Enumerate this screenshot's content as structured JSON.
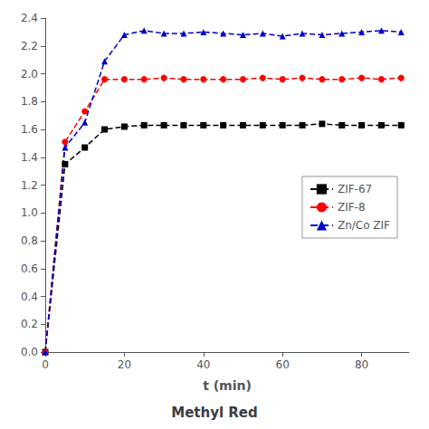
{
  "chart_data": {
    "type": "line",
    "title": "Methyl Red",
    "xlabel": "t (min)",
    "x": [
      0,
      5,
      10,
      15,
      20,
      25,
      30,
      35,
      40,
      45,
      50,
      55,
      60,
      65,
      70,
      75,
      80,
      85,
      90
    ],
    "series": [
      {
        "name": "ZIF-67",
        "color": "#000000",
        "marker": "square",
        "line_style": "dashed",
        "values": [
          0.0,
          1.35,
          1.47,
          1.6,
          1.62,
          1.63,
          1.63,
          1.63,
          1.63,
          1.63,
          1.63,
          1.63,
          1.63,
          1.63,
          1.64,
          1.63,
          1.63,
          1.63,
          1.63
        ]
      },
      {
        "name": "ZIF-8",
        "color": "#ff0000",
        "marker": "circle",
        "line_style": "dashed",
        "values": [
          0.0,
          1.51,
          1.73,
          1.96,
          1.96,
          1.96,
          1.97,
          1.96,
          1.96,
          1.96,
          1.96,
          1.97,
          1.96,
          1.97,
          1.96,
          1.96,
          1.97,
          1.96,
          1.97
        ]
      },
      {
        "name": "Zn/Co ZIF",
        "color": "#0000cc",
        "marker": "triangle",
        "line_style": "dashed",
        "values": [
          0.0,
          1.47,
          1.65,
          2.09,
          2.28,
          2.31,
          2.29,
          2.29,
          2.3,
          2.29,
          2.28,
          2.29,
          2.27,
          2.29,
          2.28,
          2.29,
          2.3,
          2.31,
          2.3
        ]
      }
    ],
    "xlim": [
      0,
      92
    ],
    "xticks": [
      0,
      20,
      40,
      60,
      80
    ],
    "ylim": [
      0.0,
      2.4
    ],
    "yticks": [
      {
        "value": 0.0,
        "label": "0.0"
      },
      0.2,
      0.4,
      0.6,
      0.8,
      {
        "value": 1.0,
        "label": "1.0"
      },
      1.2,
      1.4,
      1.6,
      1.8,
      {
        "value": 2.0,
        "label": "2.0"
      },
      2.2,
      2.4
    ],
    "legend": "right",
    "grid": false
  }
}
